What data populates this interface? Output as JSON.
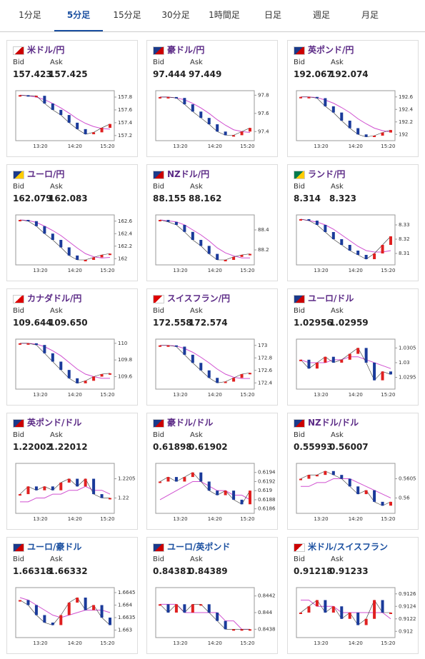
{
  "tabs": {
    "labels": [
      "1分足",
      "5分足",
      "15分足",
      "30分足",
      "1時間足",
      "日足",
      "週足",
      "月足"
    ],
    "active": 1
  },
  "labels": {
    "bid": "Bid",
    "ask": "Ask"
  },
  "xlabels": [
    "13:20",
    "14:20",
    "15:20"
  ],
  "cards": [
    {
      "title": "米ドル/円",
      "title_color": "#5b2a86",
      "bid": "157.423",
      "ask": "157.425",
      "ylim": [
        157.12,
        157.9
      ],
      "yticks": [
        157.2,
        157.4,
        157.6,
        157.8
      ],
      "values": [
        157.83,
        157.82,
        157.82,
        157.7,
        157.6,
        157.52,
        157.4,
        157.3,
        157.22,
        157.25,
        157.32,
        157.38
      ],
      "ma": [
        157.83,
        157.82,
        157.8,
        157.76,
        157.7,
        157.63,
        157.55,
        157.46,
        157.39,
        157.34,
        157.31,
        157.3
      ]
    },
    {
      "title": "豪ドル/円",
      "title_color": "#5b2a86",
      "bid": "97.444",
      "ask": "97.449",
      "ylim": [
        97.3,
        97.85
      ],
      "yticks": [
        97.4,
        97.6,
        97.8
      ],
      "values": [
        97.78,
        97.78,
        97.77,
        97.7,
        97.62,
        97.55,
        97.48,
        97.4,
        97.36,
        97.36,
        97.4,
        97.44
      ],
      "ma": [
        97.78,
        97.78,
        97.77,
        97.75,
        97.71,
        97.66,
        97.6,
        97.53,
        97.47,
        97.42,
        97.4,
        97.39
      ]
    },
    {
      "title": "英ポンド/円",
      "title_color": "#5b2a86",
      "bid": "192.067",
      "ask": "192.074",
      "ylim": [
        191.9,
        192.7
      ],
      "yticks": [
        192,
        192.2,
        192.4,
        192.6
      ],
      "values": [
        192.6,
        192.6,
        192.58,
        192.45,
        192.35,
        192.22,
        192.1,
        192,
        191.96,
        191.98,
        192.03,
        192.07
      ],
      "ma": [
        192.6,
        192.6,
        192.59,
        192.55,
        192.5,
        192.43,
        192.35,
        192.25,
        192.17,
        192.1,
        192.06,
        192.04
      ]
    },
    {
      "title": "ユーロ/円",
      "title_color": "#5b2a86",
      "bid": "162.079",
      "ask": "162.083",
      "ylim": [
        161.9,
        162.7
      ],
      "yticks": [
        162,
        162.2,
        162.4,
        162.6
      ],
      "values": [
        162.62,
        162.6,
        162.52,
        162.4,
        162.3,
        162.18,
        162.05,
        161.98,
        161.98,
        162.02,
        162.06,
        162.08
      ],
      "ma": [
        162.62,
        162.61,
        162.58,
        162.52,
        162.45,
        162.37,
        162.27,
        162.17,
        162.08,
        162.03,
        162.01,
        162.02
      ]
    },
    {
      "title": "NZドル/円",
      "title_color": "#5b2a86",
      "bid": "88.155",
      "ask": "88.162",
      "ylim": [
        88.05,
        88.55
      ],
      "yticks": [
        88.2,
        88.4
      ],
      "values": [
        88.5,
        88.48,
        88.45,
        88.38,
        88.3,
        88.24,
        88.16,
        88.1,
        88.1,
        88.13,
        88.15,
        88.16
      ],
      "ma": [
        88.5,
        88.49,
        88.48,
        88.45,
        88.4,
        88.35,
        88.29,
        88.22,
        88.17,
        88.14,
        88.12,
        88.12
      ]
    },
    {
      "title": "ランド/円",
      "title_color": "#5b2a86",
      "bid": "8.314",
      "ask": "8.323",
      "ylim": [
        8.302,
        8.337
      ],
      "yticks": [
        8.31,
        8.32,
        8.33
      ],
      "values": [
        8.334,
        8.333,
        8.33,
        8.325,
        8.32,
        8.316,
        8.312,
        8.309,
        8.306,
        8.31,
        8.316,
        8.322
      ],
      "ma": [
        8.334,
        8.333,
        8.332,
        8.33,
        8.327,
        8.323,
        8.319,
        8.315,
        8.312,
        8.311,
        8.311,
        8.312
      ]
    },
    {
      "title": "カナダドル/円",
      "title_color": "#5b2a86",
      "bid": "109.644",
      "ask": "109.650",
      "ylim": [
        109.45,
        110.05
      ],
      "yticks": [
        109.6,
        109.8,
        110
      ],
      "values": [
        110,
        110,
        109.98,
        109.88,
        109.78,
        109.68,
        109.58,
        109.52,
        109.55,
        109.6,
        109.63,
        109.64
      ],
      "ma": [
        110,
        110,
        109.99,
        109.96,
        109.91,
        109.85,
        109.77,
        109.69,
        109.63,
        109.6,
        109.58,
        109.58
      ]
    },
    {
      "title": "スイスフラン/円",
      "title_color": "#5b2a86",
      "bid": "172.558",
      "ask": "172.574",
      "ylim": [
        172.3,
        173.1
      ],
      "yticks": [
        172.4,
        172.6,
        172.8,
        173
      ],
      "values": [
        173,
        173,
        172.98,
        172.85,
        172.72,
        172.6,
        172.48,
        172.4,
        172.42,
        172.48,
        172.54,
        172.56
      ],
      "ma": [
        173,
        173,
        172.99,
        172.95,
        172.89,
        172.81,
        172.72,
        172.62,
        172.54,
        172.49,
        172.47,
        172.47
      ]
    },
    {
      "title": "ユーロ/ドル",
      "title_color": "#5b2a86",
      "bid": "1.02956",
      "ask": "1.02959",
      "ylim": [
        1.0291,
        1.0308
      ],
      "yticks": [
        1.0295,
        1.03,
        1.0305
      ],
      "values": [
        1.0301,
        1.0298,
        1.03,
        1.0302,
        1.03,
        1.0301,
        1.0303,
        1.0305,
        1.03,
        1.0294,
        1.0297,
        1.0296
      ],
      "ma": [
        1.0301,
        1.03,
        1.03,
        1.03,
        1.0301,
        1.0301,
        1.0302,
        1.0302,
        1.0301,
        1.03,
        1.0299,
        1.0298
      ]
    },
    {
      "title": "英ポンド/ドル",
      "title_color": "#5b2a86",
      "bid": "1.22002",
      "ask": "1.22012",
      "ylim": [
        1.2196,
        1.2209
      ],
      "yticks": [
        1.22,
        1.2205
      ],
      "values": [
        1.2201,
        1.2203,
        1.2202,
        1.2203,
        1.2202,
        1.2204,
        1.2205,
        1.2203,
        1.2205,
        1.2201,
        1.22,
        1.22
      ],
      "ma": [
        1.2199,
        1.2199,
        1.22,
        1.22,
        1.2201,
        1.2201,
        1.2202,
        1.2202,
        1.2203,
        1.2202,
        1.2202,
        1.2201
      ]
    },
    {
      "title": "豪ドル/ドル",
      "title_color": "#5b2a86",
      "bid": "0.61898",
      "ask": "0.61902",
      "ylim": [
        0.6185,
        0.6196
      ],
      "yticks": [
        0.6186,
        0.6188,
        0.619,
        0.6192,
        0.6194
      ],
      "values": [
        0.6192,
        0.6193,
        0.6192,
        0.6193,
        0.6194,
        0.6192,
        0.619,
        0.6189,
        0.619,
        0.6188,
        0.6187,
        0.619
      ],
      "ma": [
        0.6188,
        0.6189,
        0.619,
        0.6191,
        0.6192,
        0.6192,
        0.6191,
        0.619,
        0.619,
        0.6189,
        0.6189,
        0.6188
      ]
    },
    {
      "title": "NZドル/ドル",
      "title_color": "#5b2a86",
      "bid": "0.55993",
      "ask": "0.56007",
      "ylim": [
        0.5596,
        0.5609
      ],
      "yticks": [
        0.56,
        0.5605
      ],
      "values": [
        0.5605,
        0.5606,
        0.5606,
        0.5607,
        0.5606,
        0.5605,
        0.5603,
        0.5601,
        0.5602,
        0.5599,
        0.5598,
        0.5599
      ],
      "ma": [
        0.5603,
        0.5603,
        0.5604,
        0.5604,
        0.5605,
        0.5605,
        0.5605,
        0.5604,
        0.5603,
        0.5602,
        0.5601,
        0.56
      ]
    },
    {
      "title": "ユーロ/豪ドル",
      "title_color": "#1a4fa0",
      "bid": "1.66318",
      "ask": "1.66332",
      "ylim": [
        1.6627,
        1.6647
      ],
      "yticks": [
        1.663,
        1.6635,
        1.664,
        1.6645
      ],
      "values": [
        1.6642,
        1.664,
        1.6636,
        1.6633,
        1.6632,
        1.6636,
        1.6641,
        1.6643,
        1.6638,
        1.664,
        1.6635,
        1.6632
      ],
      "ma": [
        1.6643,
        1.6642,
        1.664,
        1.6638,
        1.6636,
        1.6635,
        1.6636,
        1.6637,
        1.6638,
        1.6638,
        1.6638,
        1.6637
      ]
    },
    {
      "title": "ユーロ/英ポンド",
      "title_color": "#1a4fa0",
      "bid": "0.84381",
      "ask": "0.84389",
      "ylim": [
        0.8437,
        0.8443
      ],
      "yticks": [
        0.8438,
        0.844,
        0.8442
      ],
      "values": [
        0.8441,
        0.844,
        0.8441,
        0.844,
        0.8441,
        0.8441,
        0.844,
        0.8439,
        0.8438,
        0.8438,
        0.8438,
        0.8438
      ],
      "ma": [
        0.8441,
        0.8441,
        0.8441,
        0.844,
        0.844,
        0.844,
        0.844,
        0.844,
        0.8439,
        0.8439,
        0.8438,
        0.8438
      ]
    },
    {
      "title": "米ドル/スイスフラン",
      "title_color": "#1a4fa0",
      "bid": "0.91218",
      "ask": "0.91233",
      "ylim": [
        0.9119,
        0.9127
      ],
      "yticks": [
        0.912,
        0.9122,
        0.9124,
        0.9126
      ],
      "values": [
        0.9123,
        0.9124,
        0.9125,
        0.9123,
        0.9124,
        0.9122,
        0.9123,
        0.9121,
        0.9122,
        0.9125,
        0.9123,
        0.9123
      ],
      "ma": [
        0.9125,
        0.9125,
        0.9124,
        0.9124,
        0.9124,
        0.9123,
        0.9123,
        0.9123,
        0.9123,
        0.9123,
        0.9123,
        0.9122
      ]
    }
  ]
}
